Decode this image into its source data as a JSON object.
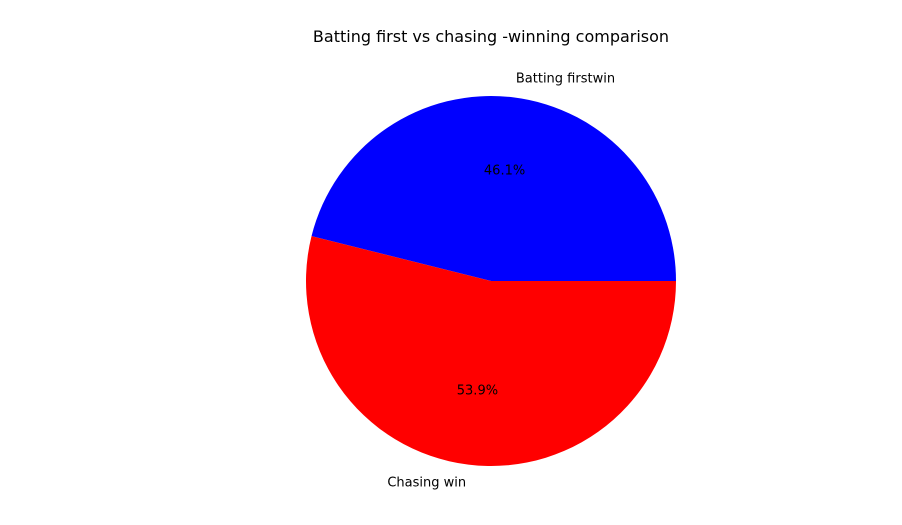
{
  "chart_data": {
    "type": "pie",
    "title": "Batting first vs chasing -winning comparison",
    "slices": [
      {
        "label": "Batting firstwin",
        "value": 46.1,
        "pct_label": "46.1%",
        "color": "#0000ff"
      },
      {
        "label": "Chasing win",
        "value": 53.9,
        "pct_label": "53.9%",
        "color": "#ff0000"
      }
    ],
    "start_angle_deg": 0,
    "direction": "counterclockwise",
    "legend": "none"
  }
}
